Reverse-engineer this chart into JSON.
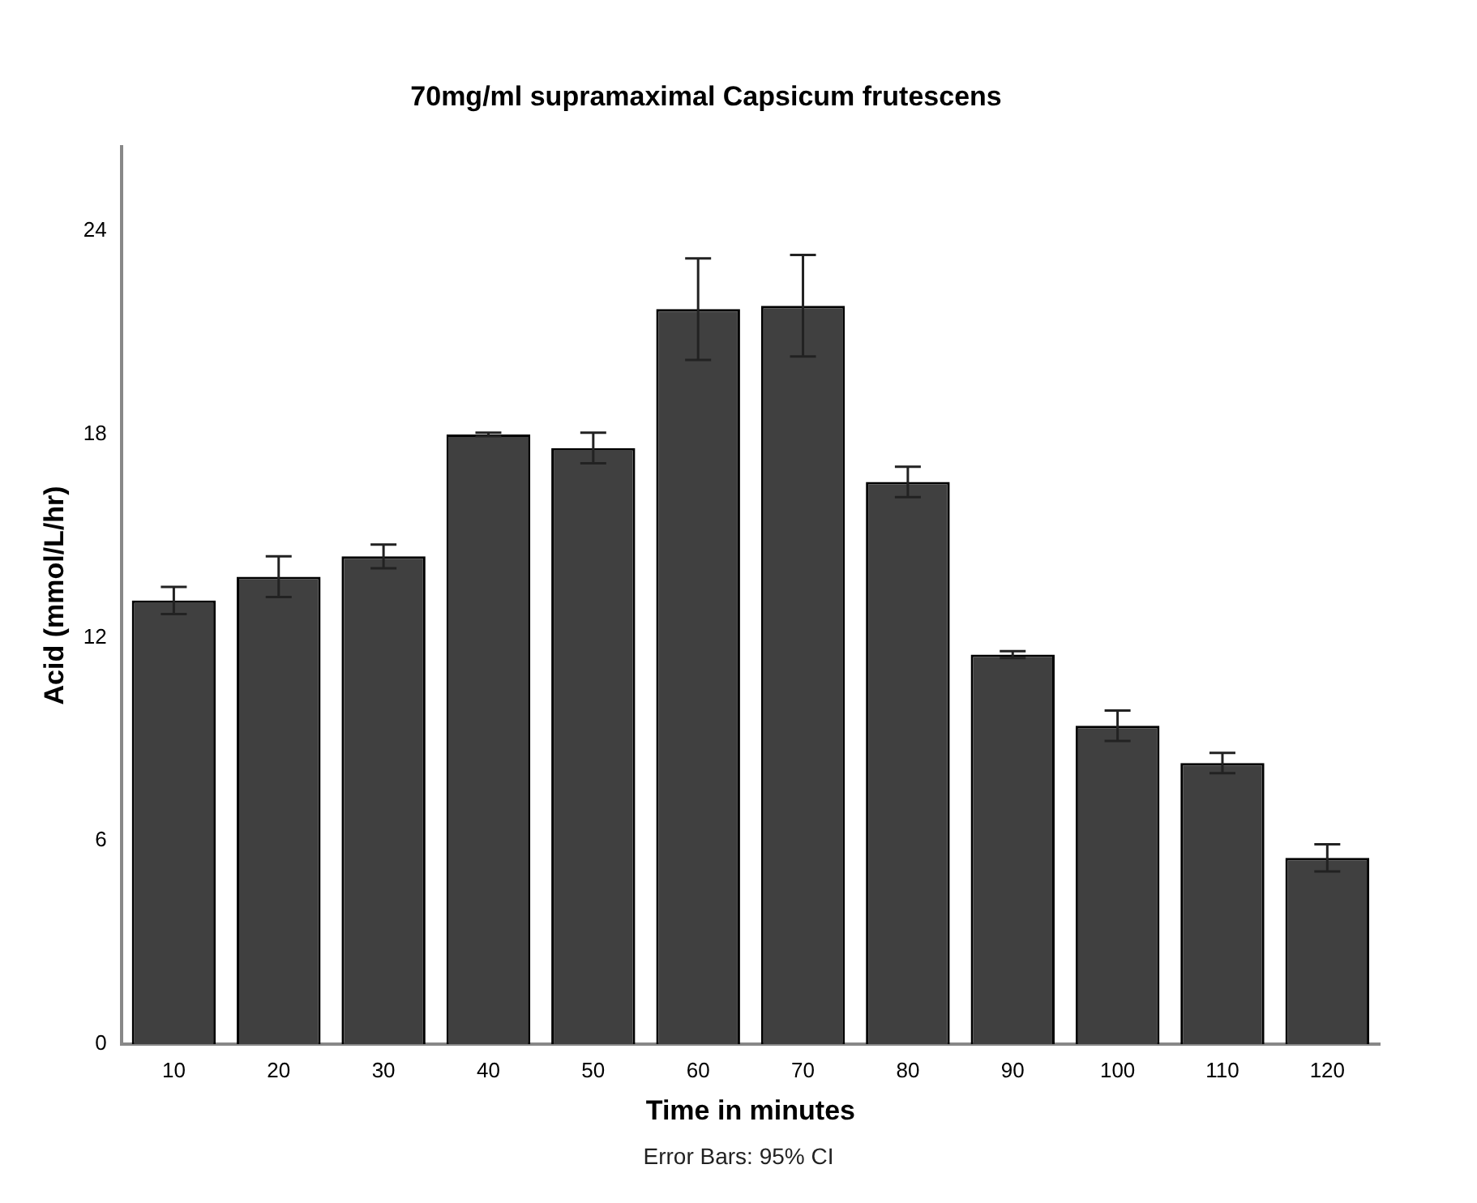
{
  "chart_data": {
    "type": "bar",
    "title": "70mg/ml supramaximal Capsicum frutescens",
    "xlabel": "Time in minutes",
    "ylabel": "Acid (mmol/L/hr)",
    "categories": [
      "10",
      "20",
      "30",
      "40",
      "50",
      "60",
      "70",
      "80",
      "90",
      "100",
      "110",
      "120"
    ],
    "values": [
      13.1,
      13.8,
      14.4,
      18.0,
      17.6,
      21.7,
      21.8,
      16.6,
      11.5,
      9.4,
      8.3,
      5.5
    ],
    "errors": [
      0.4,
      0.6,
      0.35,
      0.05,
      0.45,
      1.5,
      1.5,
      0.45,
      0.1,
      0.45,
      0.3,
      0.4
    ],
    "color": "#404040",
    "ylim": [
      0,
      26.5
    ],
    "yticks": [
      0,
      6,
      12,
      18,
      24
    ],
    "grid": false,
    "legend": false,
    "annotations": [
      "Error Bars: 95% CI"
    ]
  }
}
